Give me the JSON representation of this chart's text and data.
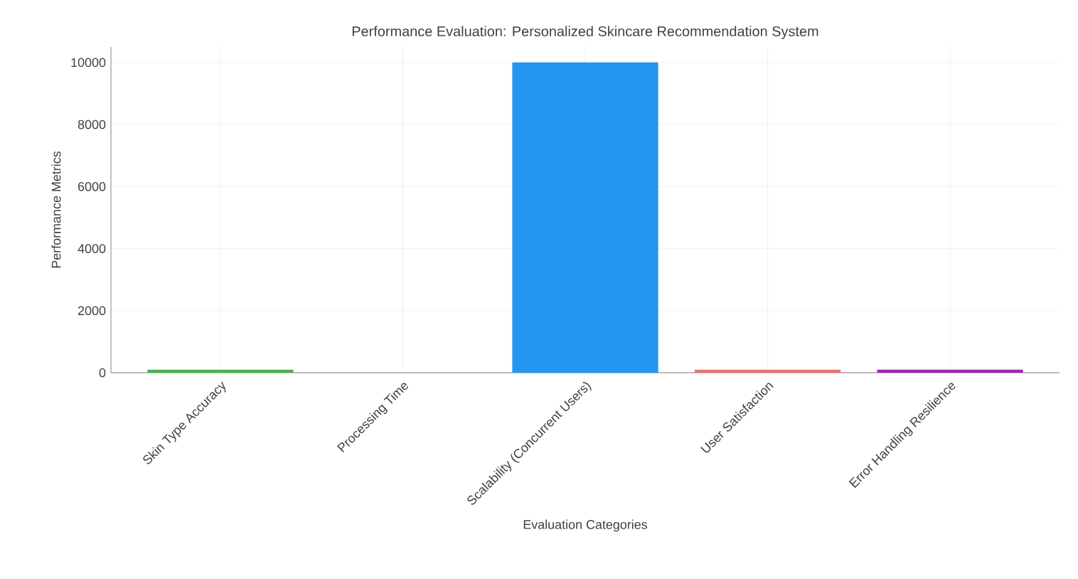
{
  "chart_data": {
    "type": "bar",
    "title": "Performance Evaluation: Personalized Skincare Recommendation System",
    "categories": [
      "Skin Type Accuracy",
      "Processing Time",
      "Scalability (Concurrent Users)",
      "User Satisfaction",
      "Error Handling Resilience"
    ],
    "values": [
      100,
      null,
      10000,
      100,
      100
    ],
    "colors": [
      "#4caf50",
      "#ff9800",
      "#2196f3",
      "#e57373",
      "#9c27b0"
    ],
    "xlabel": "Evaluation Categories",
    "ylabel": "Performance Metrics",
    "ylim": [
      0,
      10500
    ],
    "yticks": [
      0,
      2000,
      4000,
      6000,
      8000,
      10000
    ],
    "grid": true
  }
}
